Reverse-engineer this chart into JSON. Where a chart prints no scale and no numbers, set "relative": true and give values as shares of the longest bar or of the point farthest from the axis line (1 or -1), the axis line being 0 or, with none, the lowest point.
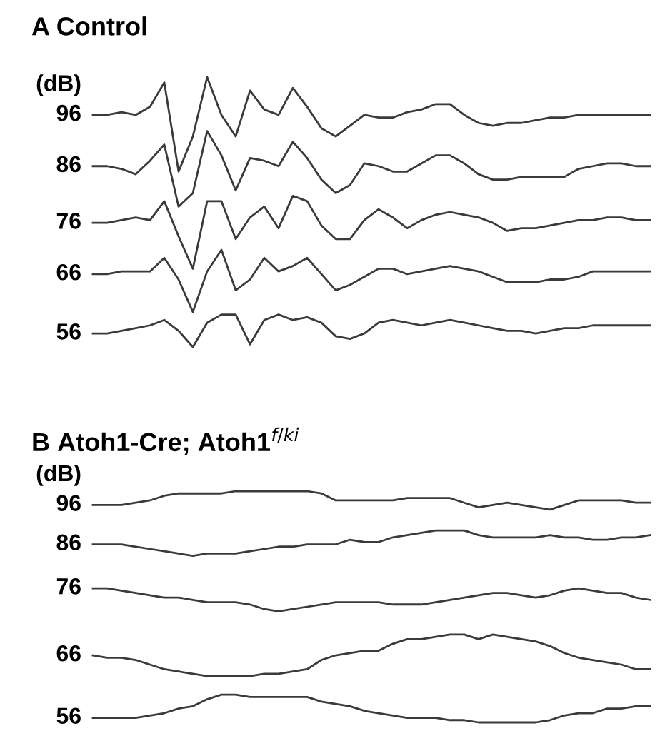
{
  "chart_data": [
    {
      "type": "line",
      "title": "A Control",
      "ylabel": "(dB)",
      "relative": true,
      "categories": [
        null,
        null,
        null,
        null,
        null,
        null,
        null,
        null,
        null,
        null,
        null,
        null,
        null,
        null,
        null,
        null,
        null,
        null,
        null,
        null,
        null,
        null,
        null,
        null,
        null,
        null,
        null,
        null,
        null,
        null,
        null,
        null,
        null,
        null,
        null,
        null,
        null,
        null,
        null,
        null
      ],
      "series": [
        {
          "name": "96",
          "color": "#3a3a3a",
          "values": [
            0.86,
            0.86,
            0.87,
            0.86,
            0.89,
            0.98,
            0.65,
            0.78,
            1,
            0.86,
            0.78,
            0.95,
            0.88,
            0.86,
            0.96,
            0.89,
            0.81,
            0.78,
            0.82,
            0.86,
            0.85,
            0.85,
            0.87,
            0.88,
            0.9,
            0.9,
            0.86,
            0.83,
            0.82,
            0.83,
            0.83,
            0.84,
            0.85,
            0.85,
            0.86,
            0.86,
            0.86,
            0.86,
            0.86,
            0.86
          ]
        },
        {
          "name": "86",
          "color": "#3a3a3a",
          "values": [
            0.67,
            0.67,
            0.66,
            0.64,
            0.69,
            0.75,
            0.52,
            0.57,
            0.8,
            0.71,
            0.58,
            0.7,
            0.69,
            0.67,
            0.76,
            0.7,
            0.62,
            0.57,
            0.6,
            0.68,
            0.67,
            0.65,
            0.65,
            0.68,
            0.71,
            0.71,
            0.68,
            0.64,
            0.62,
            0.62,
            0.63,
            0.63,
            0.63,
            0.63,
            0.66,
            0.67,
            0.68,
            0.68,
            0.67,
            0.67
          ]
        },
        {
          "name": "76",
          "color": "#3a3a3a",
          "values": [
            0.46,
            0.46,
            0.47,
            0.48,
            0.47,
            0.54,
            0.41,
            0.29,
            0.54,
            0.54,
            0.4,
            0.48,
            0.52,
            0.44,
            0.56,
            0.54,
            0.45,
            0.4,
            0.4,
            0.47,
            0.51,
            0.48,
            0.44,
            0.47,
            0.49,
            0.5,
            0.49,
            0.48,
            0.46,
            0.43,
            0.44,
            0.44,
            0.45,
            0.46,
            0.47,
            0.47,
            0.48,
            0.48,
            0.47,
            0.47
          ]
        },
        {
          "name": "66",
          "color": "#3a3a3a",
          "values": [
            0.27,
            0.27,
            0.28,
            0.28,
            0.28,
            0.33,
            0.25,
            0.13,
            0.28,
            0.36,
            0.21,
            0.25,
            0.33,
            0.28,
            0.3,
            0.33,
            0.27,
            0.21,
            0.23,
            0.26,
            0.29,
            0.29,
            0.27,
            0.28,
            0.29,
            0.3,
            0.29,
            0.28,
            0.26,
            0.24,
            0.24,
            0.24,
            0.25,
            0.25,
            0.26,
            0.28,
            0.28,
            0.28,
            0.28,
            0.28
          ]
        },
        {
          "name": "56",
          "color": "#3a3a3a",
          "values": [
            0.05,
            0.05,
            0.06,
            0.07,
            0.08,
            0.1,
            0.06,
            0,
            0.09,
            0.12,
            0.12,
            0.01,
            0.1,
            0.12,
            0.1,
            0.11,
            0.09,
            0.04,
            0.03,
            0.05,
            0.09,
            0.1,
            0.09,
            0.08,
            0.09,
            0.1,
            0.09,
            0.08,
            0.07,
            0.06,
            0.06,
            0.05,
            0.06,
            0.07,
            0.07,
            0.08,
            0.08,
            0.08,
            0.08,
            0.08
          ]
        }
      ]
    },
    {
      "type": "line",
      "title": "B Atoh1-Cre; Atoh1$^{f/ki}$",
      "ylabel": "(dB)",
      "relative": true,
      "categories": [
        null,
        null,
        null,
        null,
        null,
        null,
        null,
        null,
        null,
        null,
        null,
        null,
        null,
        null,
        null,
        null,
        null,
        null,
        null,
        null,
        null,
        null,
        null,
        null,
        null,
        null,
        null,
        null,
        null,
        null,
        null,
        null,
        null,
        null,
        null,
        null,
        null,
        null,
        null,
        null
      ],
      "series": [
        {
          "name": "96",
          "color": "#3a3a3a",
          "values": [
            0.94,
            0.94,
            0.94,
            0.95,
            0.96,
            0.98,
            0.99,
            0.99,
            0.99,
            0.99,
            1,
            1,
            1,
            1,
            1,
            1,
            0.99,
            0.96,
            0.96,
            0.96,
            0.96,
            0.96,
            0.97,
            0.97,
            0.97,
            0.97,
            0.95,
            0.93,
            0.94,
            0.95,
            0.94,
            0.93,
            0.92,
            0.94,
            0.96,
            0.96,
            0.96,
            0.96,
            0.95,
            0.95
          ]
        },
        {
          "name": "86",
          "color": "#3a3a3a",
          "values": [
            0.77,
            0.77,
            0.77,
            0.76,
            0.75,
            0.74,
            0.73,
            0.72,
            0.73,
            0.73,
            0.73,
            0.74,
            0.75,
            0.76,
            0.76,
            0.77,
            0.77,
            0.77,
            0.79,
            0.78,
            0.78,
            0.8,
            0.81,
            0.82,
            0.83,
            0.83,
            0.83,
            0.81,
            0.8,
            0.8,
            0.8,
            0.8,
            0.81,
            0.8,
            0.8,
            0.79,
            0.79,
            0.8,
            0.8,
            0.81
          ]
        },
        {
          "name": "76",
          "color": "#3a3a3a",
          "values": [
            0.58,
            0.58,
            0.57,
            0.56,
            0.55,
            0.54,
            0.54,
            0.53,
            0.52,
            0.52,
            0.52,
            0.51,
            0.49,
            0.48,
            0.49,
            0.5,
            0.51,
            0.52,
            0.52,
            0.52,
            0.52,
            0.51,
            0.51,
            0.51,
            0.52,
            0.53,
            0.54,
            0.55,
            0.56,
            0.56,
            0.55,
            0.54,
            0.55,
            0.57,
            0.58,
            0.57,
            0.56,
            0.56,
            0.54,
            0.53
          ]
        },
        {
          "name": "66",
          "color": "#3a3a3a",
          "values": [
            0.29,
            0.28,
            0.28,
            0.27,
            0.25,
            0.23,
            0.22,
            0.21,
            0.2,
            0.2,
            0.2,
            0.2,
            0.21,
            0.21,
            0.22,
            0.23,
            0.27,
            0.29,
            0.3,
            0.31,
            0.31,
            0.34,
            0.36,
            0.36,
            0.37,
            0.38,
            0.38,
            0.36,
            0.38,
            0.37,
            0.36,
            0.35,
            0.33,
            0.3,
            0.28,
            0.27,
            0.26,
            0.25,
            0.23,
            0.23
          ]
        },
        {
          "name": "56",
          "color": "#3a3a3a",
          "values": [
            0.02,
            0.02,
            0.02,
            0.02,
            0.03,
            0.04,
            0.06,
            0.07,
            0.1,
            0.12,
            0.12,
            0.11,
            0.11,
            0.11,
            0.11,
            0.11,
            0.09,
            0.08,
            0.07,
            0.05,
            0.04,
            0.03,
            0.02,
            0.02,
            0.02,
            0.01,
            0.01,
            0,
            0,
            0,
            0,
            0,
            0.01,
            0.03,
            0.04,
            0.04,
            0.06,
            0.06,
            0.07,
            0.07
          ]
        }
      ]
    }
  ]
}
